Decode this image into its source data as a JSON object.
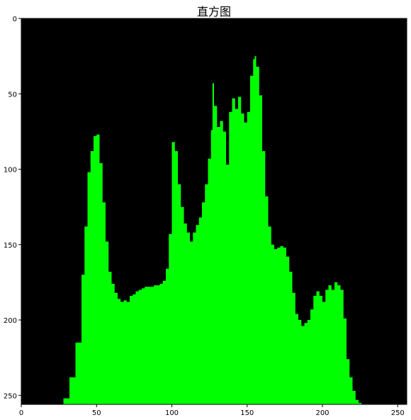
{
  "chart_data": {
    "type": "area",
    "title": "直方图",
    "xlabel": "",
    "ylabel": "",
    "xlim": [
      0,
      256
    ],
    "ylim": [
      256,
      0
    ],
    "y_inverted": true,
    "grid": false,
    "legend": "none",
    "colors": {
      "background": "#000000",
      "fill": "#00ff00"
    },
    "x_ticks": [
      "0",
      "50",
      "100",
      "150",
      "200",
      "250"
    ],
    "y_ticks": [
      "0",
      "50",
      "100",
      "150",
      "200",
      "250"
    ],
    "x_tick_values": [
      0,
      50,
      100,
      150,
      200,
      250
    ],
    "y_tick_values": [
      0,
      50,
      100,
      150,
      200,
      250
    ],
    "series": [
      {
        "x": [
          0,
          24,
          28,
          32,
          36,
          40,
          42,
          44,
          46,
          48,
          50,
          52,
          54,
          56,
          58,
          60,
          62,
          64,
          66,
          68,
          70,
          72,
          74,
          76,
          78,
          80,
          82,
          84,
          86,
          88,
          90,
          92,
          94,
          96,
          98,
          100,
          102,
          104,
          106,
          108,
          110,
          112,
          114,
          116,
          118,
          120,
          122,
          124,
          126,
          127,
          128,
          130,
          132,
          134,
          136,
          138,
          140,
          142,
          144,
          146,
          148,
          150,
          152,
          154,
          155,
          156,
          158,
          160,
          162,
          164,
          166,
          168,
          170,
          172,
          174,
          176,
          178,
          180,
          182,
          184,
          186,
          188,
          190,
          192,
          194,
          196,
          198,
          200,
          202,
          204,
          206,
          208,
          210,
          212,
          214,
          216,
          218,
          220,
          222,
          224,
          226,
          228,
          230,
          232,
          256
        ],
        "y": [
          256,
          256,
          252,
          238,
          215,
          170,
          138,
          102,
          88,
          78,
          77,
          96,
          122,
          148,
          168,
          176,
          182,
          186,
          188,
          187,
          188,
          184,
          183,
          181,
          180,
          179,
          178,
          178,
          178,
          177,
          177,
          176,
          174,
          166,
          143,
          82,
          88,
          110,
          125,
          136,
          142,
          148,
          142,
          137,
          132,
          122,
          110,
          93,
          74,
          43,
          58,
          72,
          68,
          75,
          97,
          62,
          53,
          60,
          52,
          63,
          69,
          62,
          38,
          27,
          25,
          32,
          51,
          88,
          118,
          138,
          150,
          153,
          152,
          151,
          152,
          158,
          168,
          182,
          196,
          200,
          204,
          202,
          200,
          193,
          184,
          181,
          184,
          188,
          180,
          177,
          180,
          175,
          177,
          180,
          199,
          226,
          238,
          247,
          253,
          255,
          256,
          256,
          256,
          256,
          256
        ]
      }
    ]
  }
}
